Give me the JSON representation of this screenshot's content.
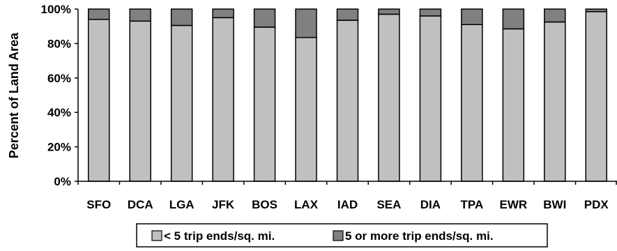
{
  "chart_data": {
    "type": "bar",
    "stacked": true,
    "percent": true,
    "ylabel": "Percent of Land Area",
    "xlabel": "",
    "ylim": [
      0,
      100
    ],
    "yticks": [
      "0%",
      "20%",
      "40%",
      "60%",
      "80%",
      "100%"
    ],
    "categories": [
      "SFO",
      "DCA",
      "LGA",
      "JFK",
      "BOS",
      "LAX",
      "IAD",
      "SEA",
      "DIA",
      "TPA",
      "EWR",
      "BWI",
      "PDX"
    ],
    "series": [
      {
        "name": "< 5 trip ends/sq. mi.",
        "color": "#c0c0c0",
        "values": [
          94,
          93,
          90.5,
          95,
          89.5,
          83.5,
          93.5,
          97,
          96,
          91,
          88.5,
          92.5,
          98.5
        ]
      },
      {
        "name": "5 or more trip ends/sq. mi.",
        "color": "#808080",
        "values": [
          6,
          7,
          9.5,
          5,
          10.5,
          16.5,
          6.5,
          3,
          4,
          9,
          11.5,
          7.5,
          1.5
        ]
      }
    ],
    "grid": false,
    "legend": "bottom"
  }
}
